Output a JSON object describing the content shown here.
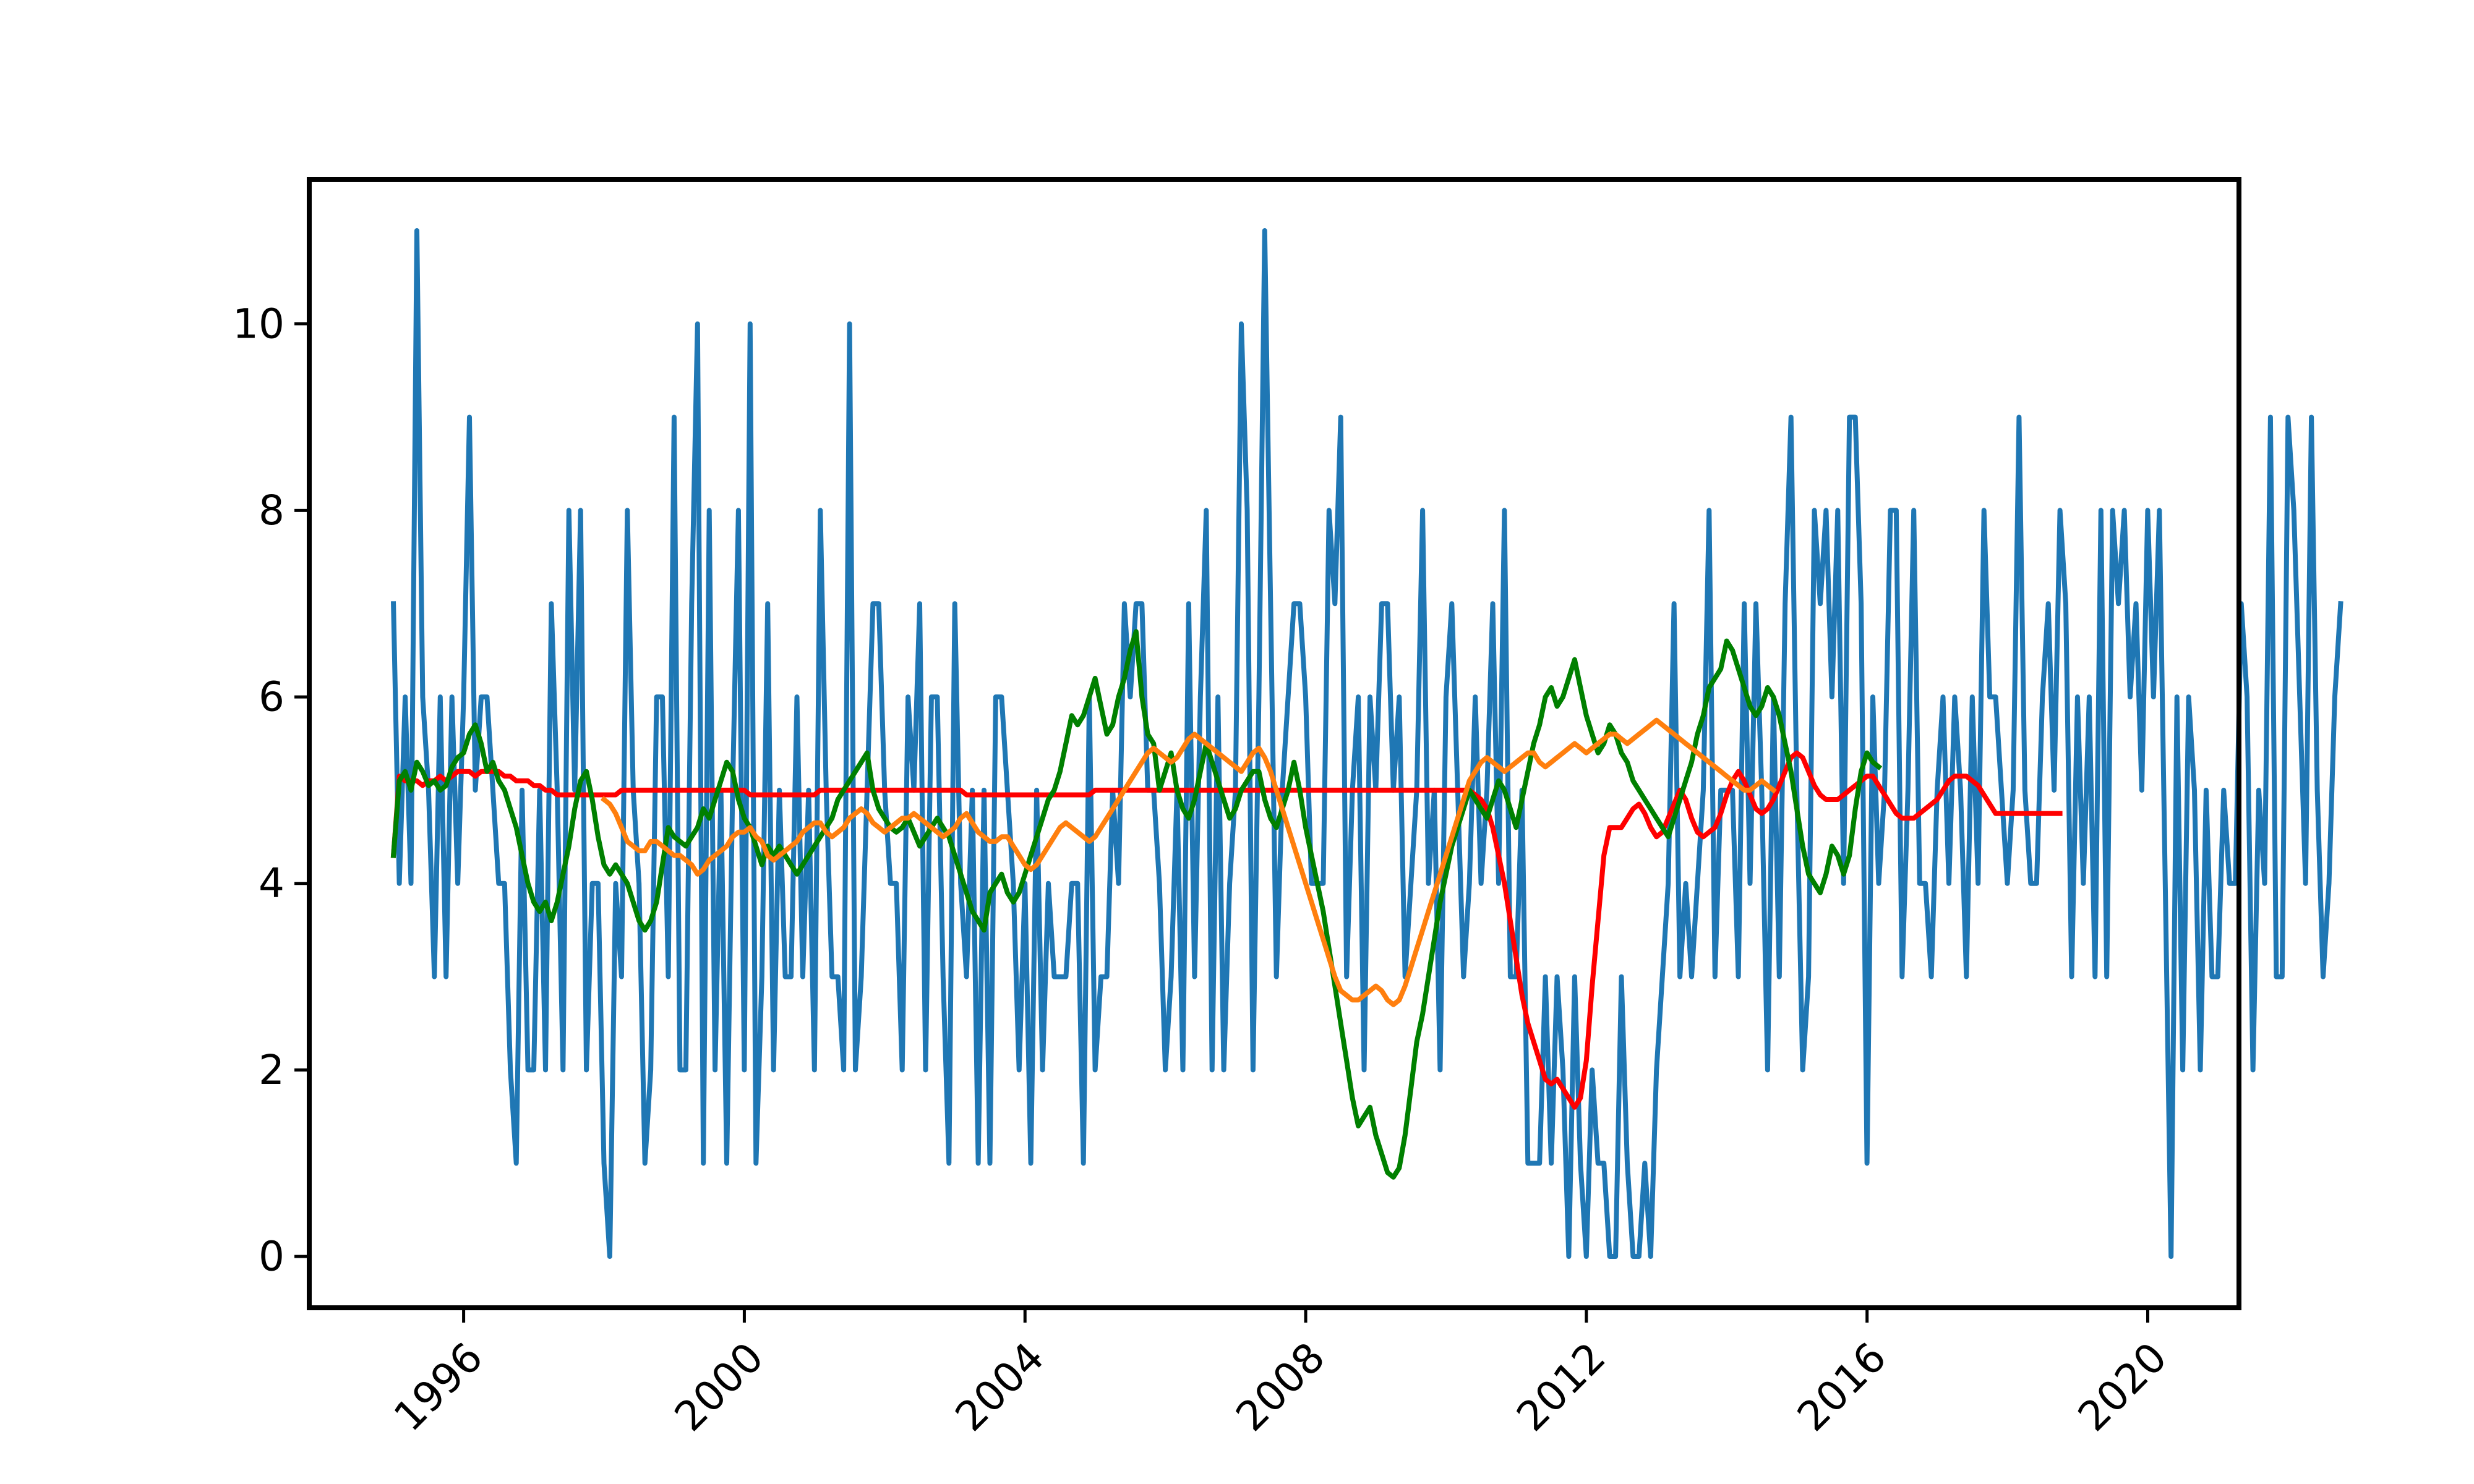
{
  "chart_data": {
    "type": "line",
    "title": "",
    "xlabel": "",
    "ylabel": "",
    "xlim": [
      1993.8,
      2021.3
    ],
    "ylim": [
      -0.55,
      11.55
    ],
    "grid": false,
    "legend": "none",
    "x_ticks": [
      {
        "value": 1996,
        "label": "1996"
      },
      {
        "value": 2000,
        "label": "2000"
      },
      {
        "value": 2004,
        "label": "2004"
      },
      {
        "value": 2008,
        "label": "2008"
      },
      {
        "value": 2012,
        "label": "2012"
      },
      {
        "value": 2016,
        "label": "2016"
      },
      {
        "value": 2020,
        "label": "2020"
      }
    ],
    "y_ticks": [
      {
        "value": 0,
        "label": "0"
      },
      {
        "value": 2,
        "label": "2"
      },
      {
        "value": 4,
        "label": "4"
      },
      {
        "value": 6,
        "label": "6"
      },
      {
        "value": 8,
        "label": "8"
      },
      {
        "value": 10,
        "label": "10"
      }
    ],
    "series": [
      {
        "color": "#1f77b4",
        "x_start": 1995.0,
        "x_step": 0.08333,
        "values": [
          7,
          4,
          6,
          4,
          11,
          6,
          5,
          3,
          6,
          3,
          6,
          4,
          6,
          9,
          5,
          6,
          6,
          5,
          4,
          4,
          2,
          1,
          5,
          2,
          2,
          5,
          2,
          7,
          5,
          2,
          8,
          5,
          8,
          2,
          4,
          4,
          1,
          0,
          4,
          3,
          8,
          5,
          4,
          1,
          2,
          6,
          6,
          3,
          9,
          2,
          2,
          7,
          10,
          1,
          8,
          2,
          5,
          1,
          5,
          8,
          2,
          10,
          1,
          3,
          7,
          2,
          5,
          3,
          3,
          6,
          3,
          5,
          2,
          8,
          5,
          3,
          3,
          2,
          10,
          2,
          3,
          5,
          7,
          7,
          5,
          4,
          4,
          2,
          6,
          5,
          7,
          2,
          6,
          6,
          3,
          1,
          7,
          4,
          3,
          5,
          1,
          5,
          1,
          6,
          6,
          5,
          4,
          2,
          4,
          1,
          5,
          2,
          4,
          3,
          3,
          3,
          4,
          4,
          1,
          6,
          2,
          3,
          3,
          5,
          4,
          7,
          6,
          7,
          7,
          5,
          5,
          4,
          2,
          3,
          5,
          2,
          7,
          3,
          6,
          8,
          2,
          6,
          2,
          4,
          5,
          10,
          8,
          2,
          6,
          11,
          7,
          3,
          5,
          6,
          7,
          7,
          6,
          4,
          4,
          4,
          8,
          7,
          9,
          3,
          5,
          6,
          2,
          6,
          5,
          7,
          7,
          5,
          6,
          3,
          4,
          5,
          8,
          4,
          5,
          2,
          6,
          7,
          5,
          3,
          4,
          6,
          4,
          5,
          7,
          4,
          8,
          3,
          3,
          5,
          1,
          1,
          1,
          3,
          1,
          3,
          2,
          0,
          3,
          1,
          0,
          2,
          1,
          1,
          0,
          0,
          3,
          1,
          0,
          0,
          1,
          0,
          2,
          3,
          4,
          7,
          3,
          4,
          3,
          4,
          5,
          8,
          3,
          5,
          5,
          5,
          3,
          7,
          4,
          7,
          5,
          2,
          6,
          3,
          7,
          9,
          5,
          2,
          3,
          8,
          7,
          8,
          6,
          8,
          4,
          9,
          9,
          7,
          1,
          6,
          4,
          5,
          8,
          8,
          3,
          5,
          8,
          4,
          4,
          3,
          5,
          6,
          4,
          6,
          5,
          3,
          6,
          4,
          8,
          6,
          6,
          5,
          4,
          5,
          9,
          5,
          4,
          4,
          6,
          7,
          5,
          8,
          7,
          3,
          6,
          4,
          6,
          3,
          8,
          3,
          8,
          7,
          8,
          6,
          7,
          5,
          8,
          6,
          8,
          4,
          0,
          6,
          2,
          6,
          5,
          2,
          5,
          3,
          3,
          5,
          4,
          4,
          7,
          6,
          2,
          5,
          4,
          9,
          3,
          3,
          9,
          8,
          6,
          4,
          9,
          5,
          3,
          4,
          6,
          7
        ]
      },
      {
        "color": "#ff0000",
        "x_start": 1995.0,
        "x_step": 0.08333,
        "values": [
          4.3,
          5.15,
          5.1,
          5.1,
          5.1,
          5.05,
          5.1,
          5.1,
          5.15,
          5.1,
          5.15,
          5.2,
          5.2,
          5.2,
          5.15,
          5.2,
          5.2,
          5.2,
          5.2,
          5.15,
          5.15,
          5.1,
          5.1,
          5.1,
          5.05,
          5.05,
          5.0,
          5.0,
          4.95,
          4.95,
          4.95,
          4.95,
          4.95,
          4.95,
          4.95,
          4.95,
          4.95,
          4.95,
          4.95,
          5.0,
          5.0,
          5.0,
          5.0,
          5.0,
          5.0,
          5.0,
          5.0,
          5.0,
          5.0,
          5.0,
          5.0,
          5.0,
          5.0,
          5.0,
          5.0,
          5.0,
          5.0,
          5.0,
          5.0,
          5.0,
          5.0,
          4.95,
          4.95,
          4.95,
          4.95,
          4.95,
          4.95,
          4.95,
          4.95,
          4.95,
          4.95,
          4.95,
          4.95,
          5.0,
          5.0,
          5.0,
          5.0,
          5.0,
          5.0,
          5.0,
          5.0,
          5.0,
          5.0,
          5.0,
          5.0,
          5.0,
          5.0,
          5.0,
          5.0,
          5.0,
          5.0,
          5.0,
          5.0,
          5.0,
          5.0,
          5.0,
          5.0,
          5.0,
          4.95,
          4.95,
          4.95,
          4.95,
          4.95,
          4.95,
          4.95,
          4.95,
          4.95,
          4.95,
          4.95,
          4.95,
          4.95,
          4.95,
          4.95,
          4.95,
          4.95,
          4.95,
          4.95,
          4.95,
          4.95,
          4.95,
          5.0,
          5.0,
          5.0,
          5.0,
          5.0,
          5.0,
          5.0,
          5.0,
          5.0,
          5.0,
          5.0,
          5.0,
          5.0,
          5.0,
          5.0,
          5.0,
          5.0,
          5.0,
          5.0,
          5.0,
          5.0,
          5.0,
          5.0,
          5.0,
          5.0,
          5.0,
          5.0,
          5.0,
          5.0,
          5.0,
          5.0,
          5.0,
          5.0,
          5.0,
          5.0,
          5.0,
          5.0,
          5.0,
          5.0,
          5.0,
          5.0,
          5.0,
          5.0,
          5.0,
          5.0,
          5.0,
          5.0,
          5.0,
          5.0,
          5.0,
          5.0,
          5.0,
          5.0,
          5.0,
          5.0,
          5.0,
          5.0,
          5.0,
          5.0,
          5.0,
          5.0,
          5.0,
          5.0,
          5.0,
          5.0,
          4.95,
          4.9,
          4.8,
          4.6,
          4.3,
          4.0,
          3.6,
          3.2,
          2.8,
          2.5,
          2.3,
          2.1,
          1.9,
          1.85,
          1.9,
          1.8,
          1.7,
          1.6,
          1.7,
          2.1,
          2.9,
          3.6,
          4.3,
          4.6,
          4.6,
          4.6,
          4.7,
          4.8,
          4.85,
          4.75,
          4.6,
          4.5,
          4.55,
          4.7,
          4.85,
          5.0,
          4.9,
          4.7,
          4.55,
          4.5,
          4.55,
          4.6,
          4.75,
          4.95,
          5.1,
          5.2,
          5.1,
          4.95,
          4.8,
          4.75,
          4.8,
          4.9,
          5.05,
          5.2,
          5.35,
          5.4,
          5.35,
          5.2,
          5.05,
          4.95,
          4.9,
          4.9,
          4.9,
          4.95,
          5.0,
          5.05,
          5.1,
          5.15,
          5.15,
          5.05,
          4.95,
          4.85,
          4.75,
          4.7,
          4.7,
          4.7,
          4.75,
          4.8,
          4.85,
          4.9,
          5.0,
          5.1,
          5.15,
          5.15,
          5.15,
          5.1,
          5.05,
          4.95,
          4.85,
          4.75,
          4.75,
          4.75,
          4.75,
          4.75,
          4.75,
          4.75,
          4.75,
          4.75,
          4.75,
          4.75,
          4.75
        ]
      },
      {
        "color": "#008000",
        "x_start": 1995.0,
        "x_step": 0.08333,
        "values": [
          4.3,
          5.1,
          5.2,
          5.0,
          5.3,
          5.2,
          5.05,
          5.1,
          5.0,
          5.05,
          5.25,
          5.35,
          5.4,
          5.6,
          5.7,
          5.5,
          5.2,
          5.3,
          5.1,
          5.0,
          4.8,
          4.6,
          4.3,
          4.0,
          3.8,
          3.7,
          3.8,
          3.6,
          3.8,
          4.1,
          4.4,
          4.8,
          5.1,
          5.2,
          4.9,
          4.5,
          4.2,
          4.1,
          4.2,
          4.1,
          4.0,
          3.8,
          3.6,
          3.5,
          3.6,
          3.8,
          4.2,
          4.6,
          4.5,
          4.45,
          4.4,
          4.5,
          4.6,
          4.8,
          4.7,
          4.9,
          5.1,
          5.3,
          5.2,
          4.9,
          4.7,
          4.6,
          4.4,
          4.2,
          4.4,
          4.3,
          4.4,
          4.3,
          4.2,
          4.1,
          4.2,
          4.3,
          4.4,
          4.5,
          4.6,
          4.7,
          4.9,
          5.0,
          5.1,
          5.2,
          5.3,
          5.4,
          5.0,
          4.8,
          4.7,
          4.6,
          4.55,
          4.6,
          4.7,
          4.55,
          4.4,
          4.5,
          4.6,
          4.7,
          4.6,
          4.5,
          4.3,
          4.1,
          3.9,
          3.7,
          3.6,
          3.5,
          3.9,
          4.0,
          4.1,
          3.9,
          3.8,
          3.9,
          4.1,
          4.3,
          4.5,
          4.7,
          4.9,
          5.0,
          5.2,
          5.5,
          5.8,
          5.7,
          5.8,
          6.0,
          6.2,
          5.9,
          5.6,
          5.7,
          6.0,
          6.2,
          6.5,
          6.7,
          6.0,
          5.6,
          5.5,
          5.0,
          5.2,
          5.4,
          5.0,
          4.8,
          4.7,
          4.9,
          5.2,
          5.5,
          5.3,
          5.1,
          4.9,
          4.7,
          4.8,
          5.0,
          5.1,
          5.2,
          5.2,
          4.9,
          4.7,
          4.6,
          4.8,
          5.0,
          5.3,
          5.0,
          4.6,
          4.3,
          4.0,
          3.7,
          3.3,
          2.9,
          2.5,
          2.1,
          1.7,
          1.4,
          1.5,
          1.6,
          1.3,
          1.1,
          0.9,
          0.85,
          0.95,
          1.3,
          1.8,
          2.3,
          2.6,
          3.0,
          3.4,
          3.8,
          4.1,
          4.4,
          4.6,
          4.8,
          5.0,
          4.9,
          4.8,
          4.7,
          4.9,
          5.1,
          5.0,
          4.8,
          4.6,
          4.9,
          5.2,
          5.5,
          5.7,
          6.0,
          6.1,
          5.9,
          6.0,
          6.2,
          6.4,
          6.1,
          5.8,
          5.6,
          5.4,
          5.5,
          5.7,
          5.6,
          5.4,
          5.3,
          5.1,
          5.0,
          4.9,
          4.8,
          4.7,
          4.6,
          4.5,
          4.7,
          4.9,
          5.1,
          5.3,
          5.6,
          5.8,
          6.1,
          6.2,
          6.3,
          6.6,
          6.5,
          6.3,
          6.1,
          5.9,
          5.8,
          5.9,
          6.1,
          6.0,
          5.8,
          5.5,
          5.2,
          4.8,
          4.4,
          4.1,
          4.0,
          3.9,
          4.1,
          4.4,
          4.3,
          4.1,
          4.3,
          4.8,
          5.2,
          5.4,
          5.3,
          5.25
        ]
      },
      {
        "color": "#ff7f0e",
        "x_start": 1998.0,
        "x_step": 0.08333,
        "values": [
          4.9,
          4.85,
          4.75,
          4.6,
          4.45,
          4.4,
          4.35,
          4.35,
          4.45,
          4.45,
          4.4,
          4.35,
          4.3,
          4.3,
          4.25,
          4.2,
          4.1,
          4.15,
          4.25,
          4.3,
          4.35,
          4.4,
          4.5,
          4.55,
          4.55,
          4.6,
          4.5,
          4.45,
          4.3,
          4.25,
          4.3,
          4.35,
          4.4,
          4.45,
          4.55,
          4.6,
          4.65,
          4.65,
          4.55,
          4.5,
          4.55,
          4.6,
          4.7,
          4.75,
          4.8,
          4.75,
          4.65,
          4.6,
          4.55,
          4.6,
          4.65,
          4.7,
          4.7,
          4.75,
          4.7,
          4.65,
          4.6,
          4.55,
          4.5,
          4.55,
          4.6,
          4.7,
          4.75,
          4.65,
          4.55,
          4.5,
          4.45,
          4.45,
          4.5,
          4.5,
          4.4,
          4.3,
          4.2,
          4.15,
          4.2,
          4.3,
          4.4,
          4.5,
          4.6,
          4.65,
          4.6,
          4.55,
          4.5,
          4.45,
          4.5,
          4.6,
          4.7,
          4.8,
          4.9,
          5.0,
          5.1,
          5.2,
          5.3,
          5.4,
          5.45,
          5.4,
          5.35,
          5.3,
          5.35,
          5.45,
          5.55,
          5.6,
          5.55,
          5.5,
          5.45,
          5.4,
          5.35,
          5.3,
          5.25,
          5.2,
          5.3,
          5.4,
          5.45,
          5.35,
          5.2,
          5.0,
          4.8,
          4.6,
          4.4,
          4.2,
          4.0,
          3.8,
          3.6,
          3.4,
          3.2,
          3.0,
          2.85,
          2.8,
          2.75,
          2.75,
          2.8,
          2.85,
          2.9,
          2.85,
          2.75,
          2.7,
          2.75,
          2.9,
          3.1,
          3.3,
          3.5,
          3.7,
          3.9,
          4.1,
          4.3,
          4.5,
          4.7,
          4.9,
          5.1,
          5.2,
          5.3,
          5.35,
          5.3,
          5.25,
          5.2,
          5.25,
          5.3,
          5.35,
          5.4,
          5.4,
          5.3,
          5.25,
          5.3,
          5.35,
          5.4,
          5.45,
          5.5,
          5.45,
          5.4,
          5.45,
          5.5,
          5.55,
          5.6,
          5.6,
          5.55,
          5.5,
          5.55,
          5.6,
          5.65,
          5.7,
          5.75,
          5.7,
          5.65,
          5.6,
          5.55,
          5.5,
          5.45,
          5.4,
          5.35,
          5.3,
          5.25,
          5.2,
          5.15,
          5.1,
          5.05,
          5.0,
          5.0,
          5.05,
          5.1,
          5.05,
          5.0
        ]
      }
    ]
  }
}
